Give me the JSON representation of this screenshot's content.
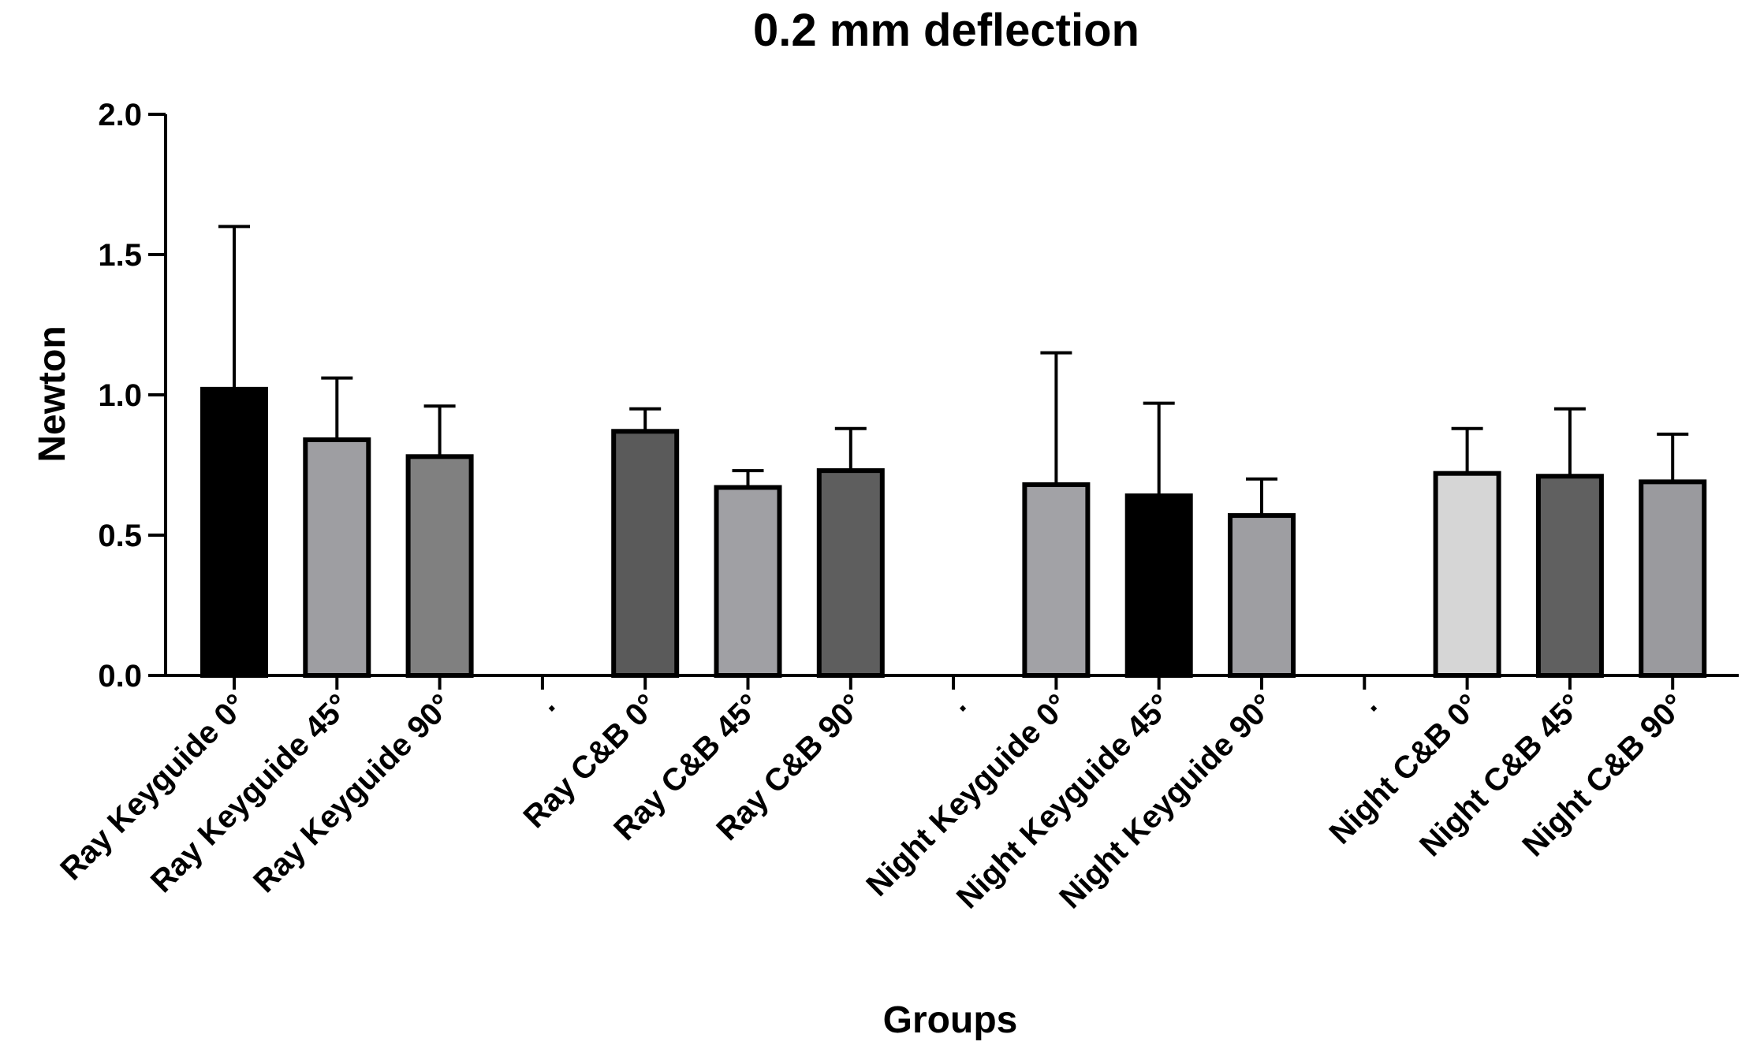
{
  "chart_data": {
    "type": "bar",
    "title": "0.2 mm deflection",
    "xlabel": "Groups",
    "ylabel": "Newton",
    "ylim": [
      0,
      2.0
    ],
    "yticks": [
      "0.0",
      "0.5",
      "1.0",
      "1.5",
      "2.0"
    ],
    "categories": [
      "Ray Keyguide 0°",
      "Ray Keyguide 45°",
      "Ray Keyguide 90°",
      ".",
      "Ray C&B 0°",
      "Ray C&B 45°",
      "Ray C&B 90°",
      ".",
      "Night Keyguide 0°",
      "Night Keyguide 45°",
      "Night Keyguide 90°",
      ".",
      "Night C&B 0°",
      "Night C&B 45°",
      "Night C&B 90°"
    ],
    "values": [
      1.02,
      0.84,
      0.78,
      null,
      0.87,
      0.67,
      0.73,
      null,
      0.68,
      0.64,
      0.57,
      null,
      0.72,
      0.71,
      0.69
    ],
    "error": [
      0.58,
      0.22,
      0.18,
      null,
      0.08,
      0.06,
      0.15,
      null,
      0.47,
      0.33,
      0.13,
      null,
      0.16,
      0.24,
      0.17
    ],
    "colors": [
      "#000000",
      "#9e9ea2",
      "#808080",
      null,
      "#5a5a5a",
      "#a0a0a4",
      "#5e5e5e",
      null,
      "#a2a2a6",
      "#000000",
      "#9e9ea2",
      null,
      "#d6d6d6",
      "#606060",
      "#9a9a9e"
    ],
    "grid": false,
    "legend": "none"
  }
}
